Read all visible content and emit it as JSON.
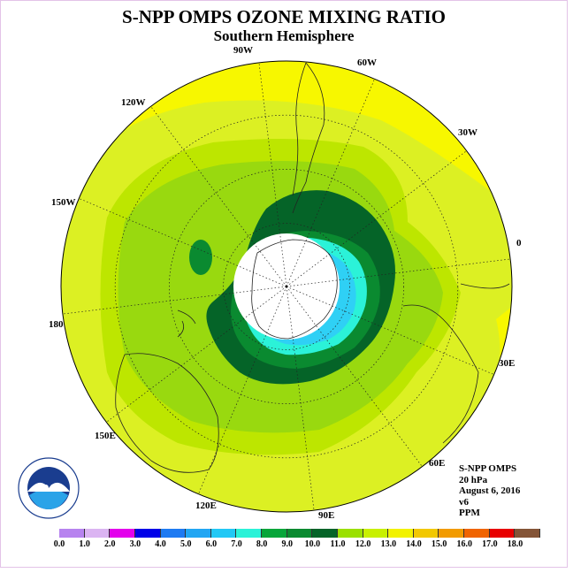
{
  "title": "S-NPP OMPS OZONE MIXING RATIO",
  "subtitle": "Southern Hemisphere",
  "meridian_labels": {
    "w90": "90W",
    "w60": "60W",
    "w30": "30W",
    "e0": "0",
    "e30": "30E",
    "e60": "60E",
    "e90": "90E",
    "e120": "120E",
    "e150": "150E",
    "d180": "180",
    "w150": "150W",
    "w120": "120W"
  },
  "info": {
    "instrument": "S-NPP OMPS",
    "level": "20 hPa",
    "date": "August 6, 2016",
    "version": "v6",
    "unit": "PPM"
  },
  "logo": {
    "text": "NOAA",
    "icon": "noaa-logo"
  },
  "colorbar": {
    "ticks": [
      "0.0",
      "1.0",
      "2.0",
      "3.0",
      "4.0",
      "5.0",
      "6.0",
      "7.0",
      "8.0",
      "9.0",
      "10.0",
      "11.0",
      "12.0",
      "13.0",
      "14.0",
      "15.0",
      "16.0",
      "17.0",
      "18.0"
    ],
    "colors": [
      "#b783ef",
      "#dbb4f2",
      "#e300ec",
      "#0000e8",
      "#1e7af2",
      "#22a6f3",
      "#22c8f5",
      "#2bf2d8",
      "#07a63a",
      "#0a8a30",
      "#056428",
      "#9be000",
      "#c8f000",
      "#f2f200",
      "#f2c800",
      "#f29b00",
      "#f06400",
      "#e80000",
      "#845437"
    ]
  },
  "map_colors": {
    "ring": "#dcf023",
    "outer": "#f7f700",
    "mid": "#bde600",
    "inner": "#99d90f",
    "c9": "#0a8a30",
    "c10": "#056428",
    "c8": "#2bf2d8",
    "c7": "#2fd0f5",
    "c6": "#1aa4f0"
  }
}
